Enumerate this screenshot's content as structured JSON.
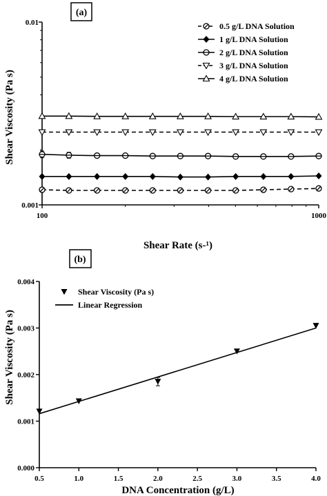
{
  "chart_data": [
    {
      "type": "line",
      "panel_label": "(a)",
      "xlabel": "Shear Rate (s-¹)",
      "ylabel": "Shear Viscosity (Pa s)",
      "xscale": "log",
      "yscale": "log",
      "xlim": [
        100,
        1000
      ],
      "ylim": [
        0.001,
        0.01
      ],
      "x_ticks": [
        "100",
        "1000"
      ],
      "y_ticks": [
        "0.001",
        "0.01"
      ],
      "legend_position": "top-right",
      "x": [
        100,
        125,
        158,
        200,
        251,
        316,
        398,
        501,
        631,
        794,
        1000
      ],
      "series": [
        {
          "name": "0.5 g/L DNA Solution",
          "marker": "circle-cross",
          "line": "dashed",
          "values": [
            0.00121,
            0.0012,
            0.0012,
            0.0012,
            0.0012,
            0.0012,
            0.0012,
            0.0012,
            0.00121,
            0.00122,
            0.00123
          ]
        },
        {
          "name": "1 g/L DNA Solution",
          "marker": "diamond-filled",
          "line": "solid",
          "values": [
            0.00143,
            0.00143,
            0.00143,
            0.00143,
            0.00143,
            0.00142,
            0.00142,
            0.00143,
            0.00143,
            0.00143,
            0.00144
          ]
        },
        {
          "name": "2 g/L DNA Solution",
          "marker": "circle-half",
          "line": "solid",
          "values": [
            0.00189,
            0.00187,
            0.00186,
            0.00186,
            0.00185,
            0.00185,
            0.00185,
            0.00184,
            0.00184,
            0.00184,
            0.00185
          ],
          "errors": [
            8e-05,
            7e-05,
            5e-05,
            4e-05,
            2e-05,
            2e-05,
            2e-05,
            1e-05,
            1e-05,
            1e-05,
            1e-05
          ]
        },
        {
          "name": "3 g/L DNA Solution",
          "marker": "triangle-down-open",
          "line": "dashed",
          "values": [
            0.0025,
            0.0025,
            0.0025,
            0.0025,
            0.0025,
            0.0025,
            0.0025,
            0.0025,
            0.0025,
            0.0025,
            0.0025
          ]
        },
        {
          "name": "4 g/L DNA Solution",
          "marker": "triangle-up-open",
          "line": "solid",
          "values": [
            0.00306,
            0.00306,
            0.00305,
            0.00305,
            0.00305,
            0.00305,
            0.00305,
            0.00304,
            0.00304,
            0.00304,
            0.00303
          ]
        }
      ]
    },
    {
      "type": "scatter",
      "panel_label": "(b)",
      "xlabel": "DNA Concentration (g/L)",
      "ylabel": "Shear Viscosity (Pa s)",
      "xlim": [
        0.5,
        4.0
      ],
      "ylim": [
        0.0,
        0.004
      ],
      "x_ticks": [
        "0.5",
        "1.0",
        "1.5",
        "2.0",
        "2.5",
        "3.0",
        "3.5",
        "4.0"
      ],
      "y_ticks": [
        "0.000",
        "0.001",
        "0.002",
        "0.003",
        "0.004"
      ],
      "legend_position": "top-left",
      "series": [
        {
          "name": "Shear Viscosity (Pa s)",
          "marker": "triangle-down-filled",
          "x": [
            0.5,
            1.0,
            2.0,
            3.0,
            4.0
          ],
          "y": [
            0.00121,
            0.00143,
            0.00185,
            0.0025,
            0.00305
          ],
          "errors": [
            1e-05,
            1e-05,
            9e-05,
            1e-05,
            1e-05
          ]
        },
        {
          "name": "Linear Regression",
          "line": "solid",
          "x": [
            0.5,
            4.0
          ],
          "y": [
            0.00116,
            0.003
          ]
        }
      ]
    }
  ]
}
